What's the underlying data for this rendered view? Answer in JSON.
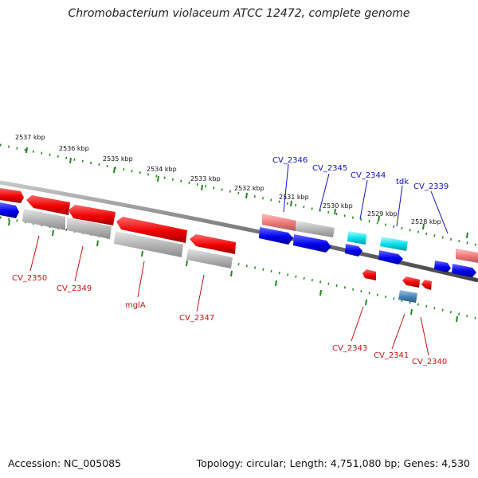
{
  "title": "Chromobacterium violaceum ATCC 12472, complete genome",
  "footer": {
    "accession": "Accession: NC_005085",
    "summary": "Topology: circular; Length: 4,751,080 bp; Genes: 4,530"
  },
  "colors": {
    "forward": "#1a1aee",
    "reverse": "#ee1111",
    "rna_light": "#00cfe6",
    "pseudo": "#aaaaaa",
    "axis": "#7a7a7a",
    "tick": "#228822",
    "label_forward": "#1111cc",
    "label_reverse": "#cc1111"
  },
  "ruler_ticks": [
    "2537 kbp",
    "2536 kbp",
    "2535 kbp",
    "2534 kbp",
    "2533 kbp",
    "2532 kbp",
    "2531 kbp",
    "2530 kbp",
    "2529 kbp",
    "2528 kbp"
  ],
  "labels_top": [
    "CV_2346",
    "CV_2345",
    "CV_2344",
    "tdk",
    "CV_2339"
  ],
  "labels_bottom": [
    "CV_2350",
    "CV_2349",
    "mglA",
    "CV_2347",
    "CV_2343",
    "CV_2341",
    "CV_2340"
  ]
}
